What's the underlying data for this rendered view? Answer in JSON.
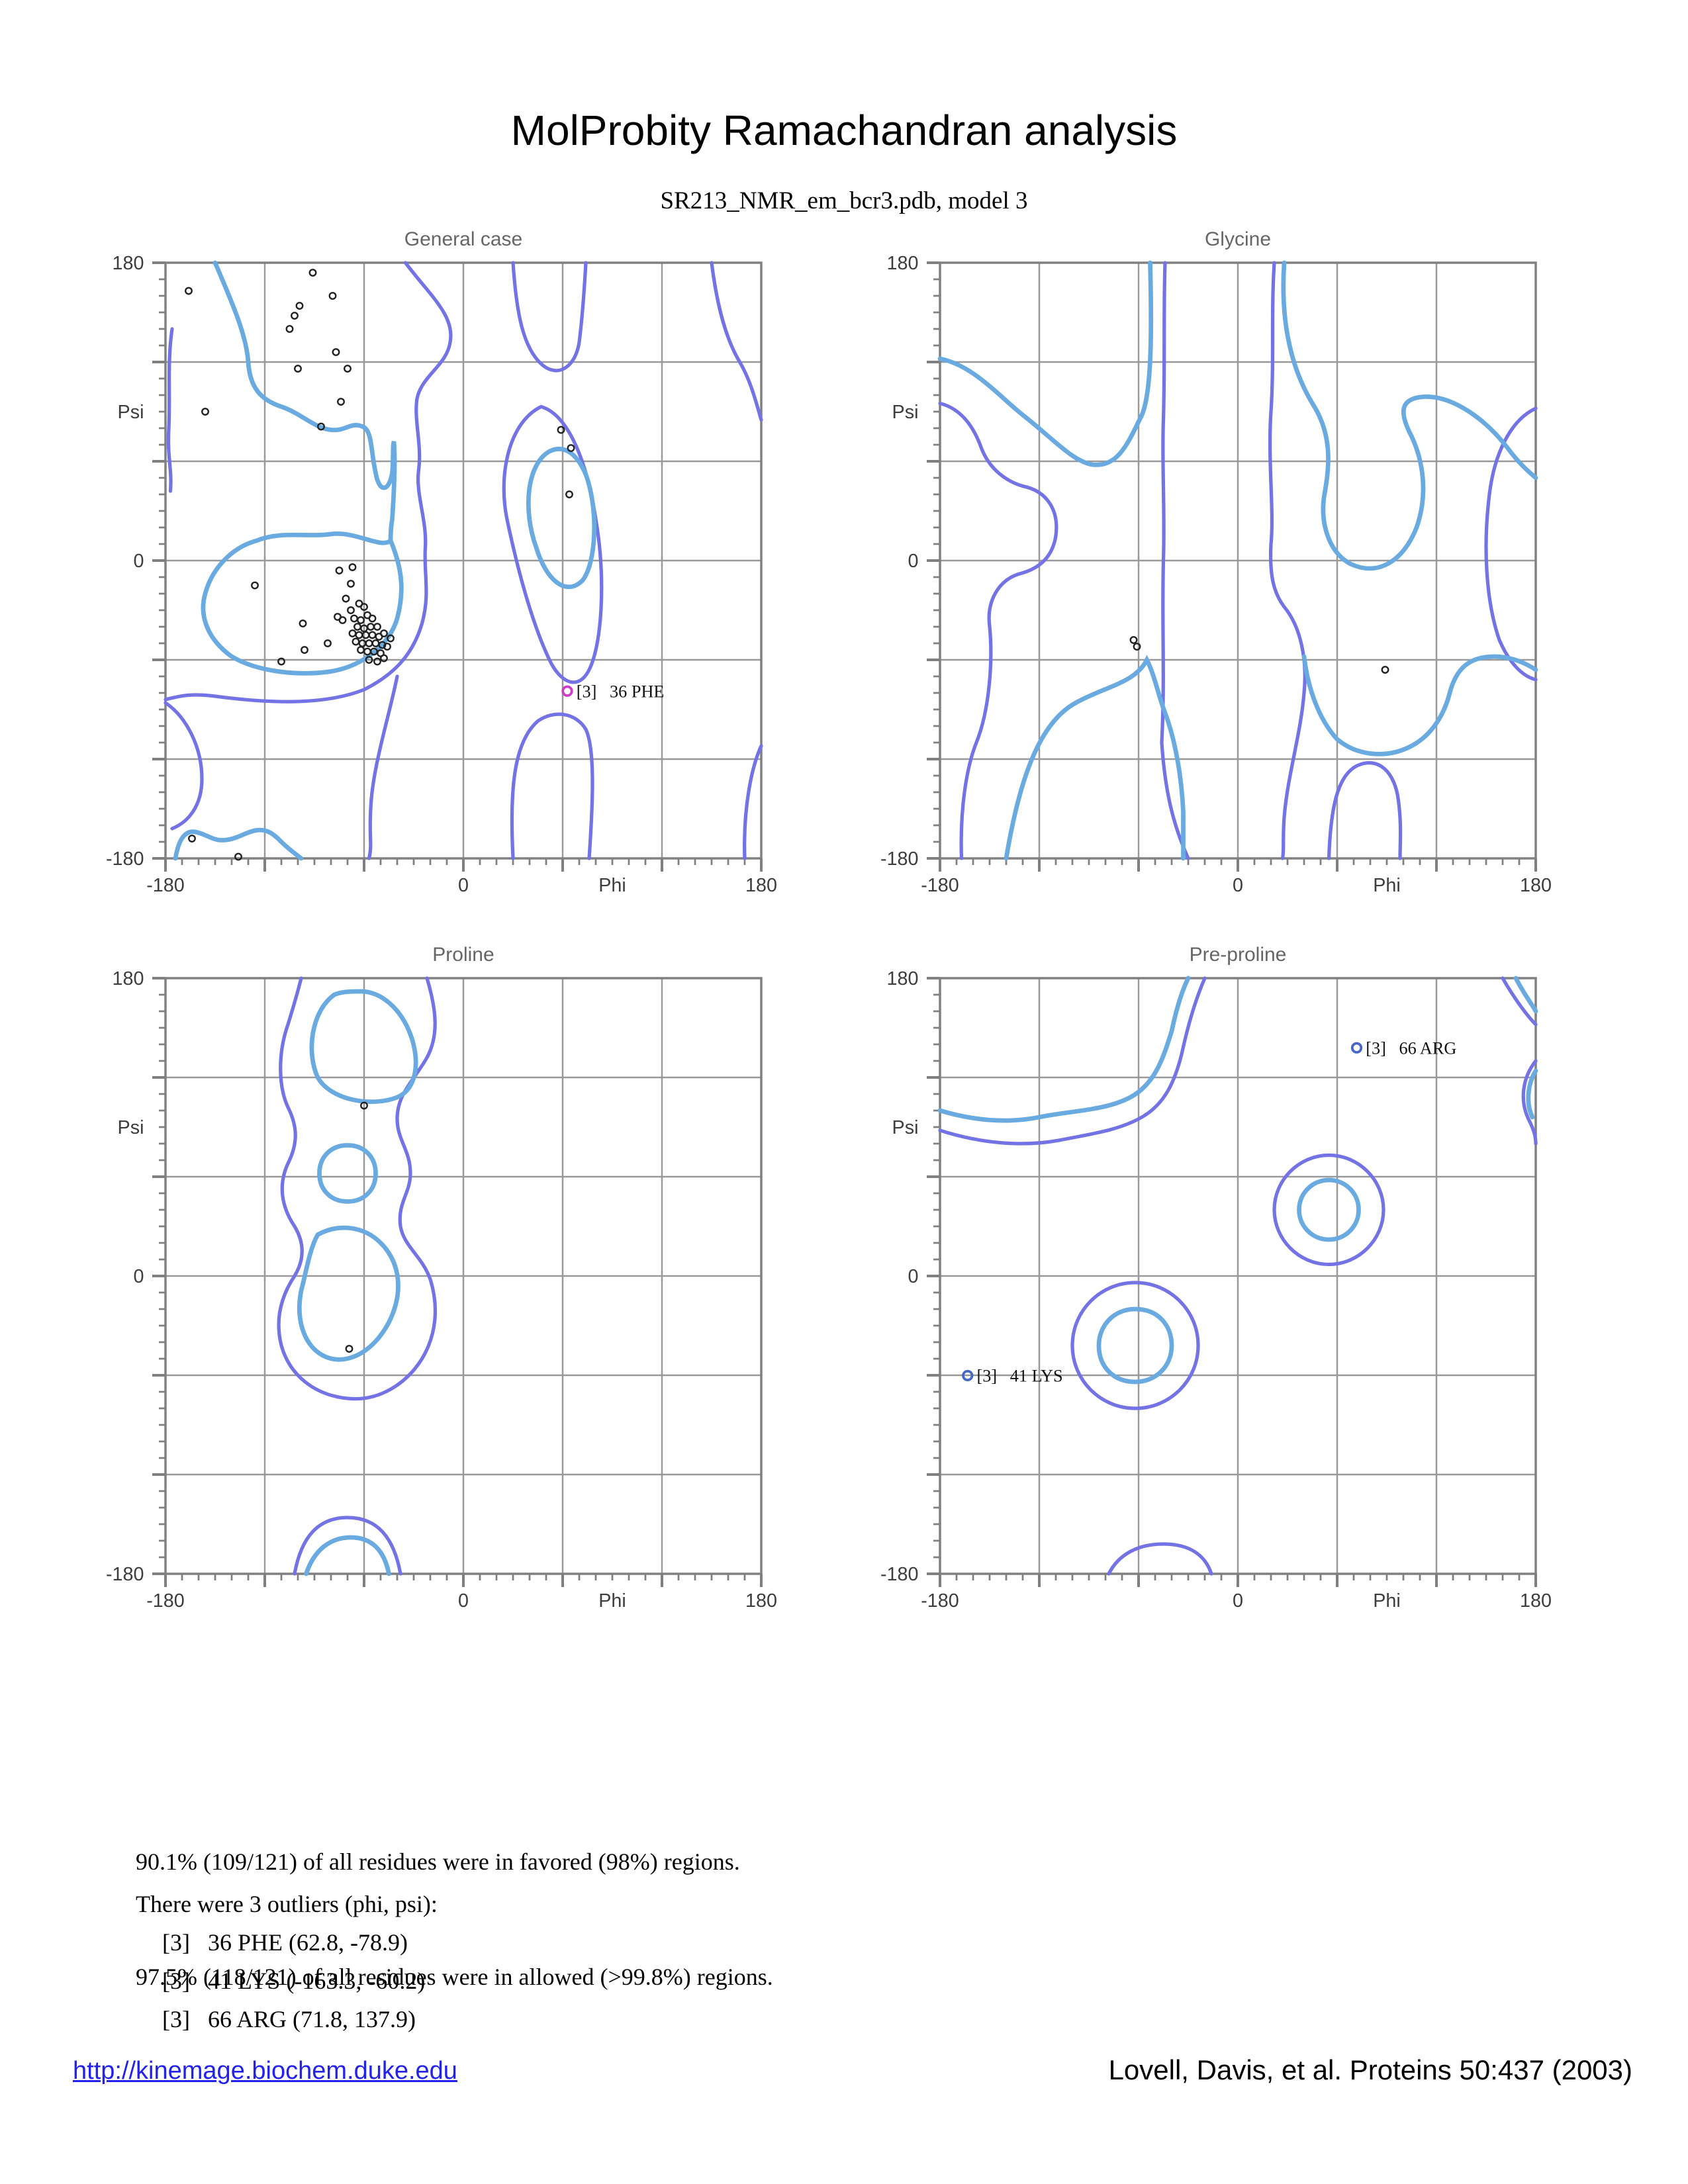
{
  "header": {
    "title": "MolProbity Ramachandran analysis",
    "subtitle": "SR213_NMR_em_bcr3.pdb, model 3"
  },
  "colors": {
    "favored_contour": "#69aae1",
    "allowed_contour": "#7373e6",
    "grid": "#999999",
    "axis": "#808080",
    "tick_label": "#3d3d3d",
    "plot_title": "#666666",
    "data_point": "#222222",
    "general_outlier": "#cc3dcc",
    "prepro_outlier": "#4568c8",
    "link": "#2222ee"
  },
  "chart_data": {
    "type": "scatter",
    "title": "MolProbity Ramachandran analysis",
    "subtitle": "SR213_NMR_em_bcr3.pdb, model 3",
    "axes": {
      "x_label": "Phi",
      "y_label": "Psi",
      "x_range": [
        -180,
        180
      ],
      "y_range": [
        -180,
        180
      ],
      "grid_step": 60,
      "minor_tick_step": 10,
      "x_ticks": [
        {
          "v": -180,
          "label": "-180"
        },
        {
          "v": 0,
          "label": "0"
        },
        {
          "v": 90,
          "label": "Phi"
        },
        {
          "v": 180,
          "label": "180"
        }
      ],
      "y_ticks": [
        {
          "v": 180,
          "label": "180"
        },
        {
          "v": 90,
          "label": "Psi"
        },
        {
          "v": 0,
          "label": "0"
        },
        {
          "v": -180,
          "label": "-180"
        }
      ]
    },
    "plots": [
      {
        "title": "General case",
        "points": [
          [
            -166,
            163
          ],
          [
            -91,
            174
          ],
          [
            -79,
            160
          ],
          [
            -99,
            154
          ],
          [
            -102,
            148
          ],
          [
            -105,
            140
          ],
          [
            -77,
            126
          ],
          [
            -100,
            116
          ],
          [
            -70,
            116
          ],
          [
            -74,
            96
          ],
          [
            -86,
            81
          ],
          [
            -156,
            90
          ],
          [
            -126,
            -15
          ],
          [
            -97,
            -38
          ],
          [
            -96,
            -54
          ],
          [
            -110,
            -61
          ],
          [
            -82,
            -50
          ],
          [
            -75,
            -6
          ],
          [
            -67,
            -4
          ],
          [
            -68,
            -14
          ],
          [
            -71,
            -23
          ],
          [
            -68,
            -30
          ],
          [
            -76,
            -34
          ],
          [
            -73,
            -36
          ],
          [
            -63,
            -26
          ],
          [
            -60,
            -28
          ],
          [
            -66,
            -35
          ],
          [
            -62,
            -36
          ],
          [
            -58,
            -33
          ],
          [
            -55,
            -35
          ],
          [
            -64,
            -40
          ],
          [
            -60,
            -41
          ],
          [
            -56,
            -40
          ],
          [
            -52,
            -40
          ],
          [
            -67,
            -44
          ],
          [
            -63,
            -45
          ],
          [
            -59,
            -45
          ],
          [
            -55,
            -45
          ],
          [
            -51,
            -46
          ],
          [
            -48,
            -44
          ],
          [
            -65,
            -49
          ],
          [
            -61,
            -50
          ],
          [
            -57,
            -50
          ],
          [
            -53,
            -50
          ],
          [
            -49,
            -51
          ],
          [
            -62,
            -54
          ],
          [
            -58,
            -55
          ],
          [
            -54,
            -55
          ],
          [
            -50,
            -56
          ],
          [
            -46,
            -52
          ],
          [
            -44,
            -47
          ],
          [
            -57,
            -60
          ],
          [
            -52,
            -61
          ],
          [
            -48,
            -59
          ],
          [
            -164,
            -168
          ],
          [
            -136,
            -179
          ],
          [
            59,
            79
          ],
          [
            65,
            68
          ],
          [
            64,
            40
          ]
        ],
        "outliers": [
          {
            "phi": 62.8,
            "psi": -78.9,
            "tag": "[3]",
            "name": "36 PHE",
            "color": "#cc3dcc"
          }
        ],
        "contours": {
          "favored": [
            "M30,0 C42,28 49,45 50,60 C51,76 58,83 70,87 C82,91 90,100 100,101 C109,102 112,96 119,99 C125,101 124,114 127,127 C129,139 135,139 137,127 C138,118 137,112 138,108 C139,120 138,140 137,155 C136,161 136,165 136,168 C130,173 115,162 100,164 C85,166 70,162 55,168 C40,172 28,185 24,200 C20,214 26,228 40,238 C55,247 80,250 100,247 C118,244 135,232 140,215 C144,200 143,188 139,176 C138,173 137,170 136,168",
            "M6,360 C8,348 12,343 18,344 C24,345 28,349 34,349 C43,349 48,344 55,343 C62,342 66,346 70,350 C74,354 78,357 82,360",
            "M232,114 C218,122 216,150 224,172 C230,192 242,202 252,192 C260,182 262,150 254,128 C248,114 240,110 232,114 Z"
          ],
          "allowed": [
            "M4,40 C1,60 3,80 2,100 C1,118 4,124 3,138",
            "M0,266 C12,274 22,292 22,312 C22,328 14,338 4,342",
            "M145,0 C160,20 175,32 172,48 C170,62 155,68 152,82 C150,95 155,110 153,125 C151,140 158,155 157,172 C156,188 160,200 155,218 C150,235 140,248 120,258 C95,268 60,266 30,262 C15,260 8,262 0,264",
            "M140,250 C135,275 125,305 124,330 C123,347 125,352 123,360",
            "M227,87 C208,96 200,128 207,158 C213,186 222,220 233,242 C240,255 250,258 256,246 C264,230 266,190 260,155 C255,122 244,92 227,87 Z",
            "M210,0 C212,30 216,52 228,62 C238,70 248,62 250,48 C252,32 253,18 254,0",
            "M330,0 C333,24 338,45 347,60 C354,72 357,85 360,95",
            "M350,360 C349,330 354,305 360,292",
            "M210,360 C208,320 210,290 225,277 C235,270 248,272 254,282 C260,295 258,330 256,360"
          ]
        }
      },
      {
        "title": "Glycine",
        "points": [
          [
            -63,
            -48
          ],
          [
            -61,
            -52
          ],
          [
            89,
            -66
          ]
        ],
        "outliers": [],
        "contours": {
          "favored": [
            "M0,58 C20,62 35,80 50,92 C68,106 80,120 92,122 C108,124 114,108 122,92 C128,78 128,40 127,0",
            "M40,360 C48,312 60,278 82,266 C100,256 118,254 125,240 C130,250 132,262 136,272 C142,288 146,310 147,332 C147,345 147,352 147,360",
            "M208,0 C206,30 210,60 225,85 C238,105 235,125 232,142 C230,158 235,175 248,182 C265,190 280,180 288,160 C295,140 292,120 285,105 C276,88 280,82 292,81 C310,80 330,95 343,112 C352,124 358,128 360,130",
            "M220,238 C222,255 228,275 240,288 C252,298 270,300 285,292 C298,285 305,272 308,260 C312,245 320,238 335,238 C345,238 354,242 360,246"
          ],
          "allowed": [
            "M0,85 C12,88 20,98 25,112 C30,125 40,132 50,135 C65,138 72,150 70,165 C68,178 60,185 48,188 C35,192 28,205 30,220 C32,240 30,270 22,290 C16,305 12,330 13,360",
            "M136,0 C135,30 136,60 135,95 C134,120 136,150 135,180 C134,220 136,250 134,290 C136,320 141,340 150,360",
            "M202,0 C200,30 202,60 200,90 C198,120 202,150 200,170 C199,190 202,200 208,208 C218,220 222,240 220,260 C218,285 210,310 208,335 C207,348 208,355 207,360",
            "M360,88 C345,95 335,115 332,140 C328,172 330,205 338,228 C344,242 352,250 360,252",
            "M235,360 C236,330 240,310 252,304 C265,298 275,308 277,325 C279,340 278,350 278,360"
          ]
        }
      },
      {
        "title": "Proline",
        "points": [
          [
            -60,
            103
          ],
          [
            -69,
            -44
          ]
        ],
        "outliers": [],
        "contours": {
          "favored": [
            "M102,10 C88,20 85,45 92,60 C100,74 125,78 140,72 C152,67 154,50 148,34 C142,18 130,8 118,8 C112,8 107,8 102,10 Z",
            "M110,101 C120,101 127,108 127,118 C127,128 120,135 110,135 C100,135 93,128 93,118 C93,108 100,101 110,101 Z",
            "M92,155 C105,148 120,150 130,160 C142,172 144,190 135,208 C125,227 108,235 95,228 C82,221 78,202 83,185 C86,172 88,162 92,155 Z",
            "M85,360 C90,345 100,338 112,338 C124,338 132,345 135,360"
          ],
          "allowed": [
            "M158,0 C164,20 165,35 158,48 C150,62 140,70 140,85 C140,98 148,104 148,118 C148,130 140,136 142,150 C144,162 155,168 160,182 C165,198 164,215 155,230 C145,246 128,256 110,254 C90,252 75,240 70,222 C66,206 70,192 78,180 C84,170 84,160 78,150 C70,138 68,125 74,112 C80,100 80,90 74,78 C68,65 68,45 74,28 C78,15 80,8 82,0",
            "M78,360 C82,338 92,326 110,326 C128,326 138,338 142,360"
          ]
        }
      },
      {
        "title": "Pre-proline",
        "points": [],
        "outliers": [
          {
            "phi": 71.8,
            "psi": 137.9,
            "tag": "[3]",
            "name": "66 ARG",
            "color": "#4568c8"
          },
          {
            "phi": -163.3,
            "psi": -60.2,
            "tag": "[3]",
            "name": "41 LYS",
            "color": "#4568c8"
          }
        ],
        "contours": {
          "favored": [
            "M0,80 C20,86 40,88 60,84 C80,80 100,80 115,72 C130,64 135,48 140,32 C143,18 146,8 150,0",
            "M118,200 C132,200 140,210 140,222 C140,235 130,244 118,244 C105,244 96,235 96,222 C96,210 105,200 118,200 Z",
            "M235,122 C245,122 253,130 253,140 C253,150 245,158 235,158 C225,158 217,150 217,140 C217,130 225,122 235,122 Z",
            "M348,0 C353,10 358,16 360,20",
            "M360,56 C355,64 354,76 358,84"
          ],
          "allowed": [
            "M0,92 C25,100 50,102 72,98 C92,94 108,92 122,84 C136,76 142,62 146,46 C150,28 154,14 160,0",
            "M118,184 C139,184 156,201 156,222 C156,243 139,260 118,260 C97,260 80,243 80,222 C80,201 97,184 118,184 Z",
            "M235,107 C253,107 268,122 268,140 C268,158 253,173 235,173 C217,173 202,158 202,140 C202,122 217,107 235,107 Z",
            "M102,360 C108,348 120,342 135,342 C150,342 160,348 164,360",
            "M340,0 C348,14 356,24 360,28",
            "M360,50 C352,60 350,74 356,86 C359,92 360,96 360,100"
          ]
        }
      }
    ]
  },
  "summary": {
    "favored_line": "90.1% (109/121) of all residues were in favored (98%) regions.",
    "allowed_line": "97.5% (118/121) of all residues were in allowed (>99.8%) regions."
  },
  "outlier_section": {
    "heading": "There were 3 outliers (phi, psi):",
    "items": [
      "[3]   36 PHE (62.8, -78.9)",
      "[3]   41 LYS (-163.3, -60.2)",
      "[3]   66 ARG (71.8, 137.9)"
    ]
  },
  "footer": {
    "link": "http://kinemage.biochem.duke.edu",
    "citation": "Lovell, Davis, et al. Proteins 50:437 (2003)"
  }
}
